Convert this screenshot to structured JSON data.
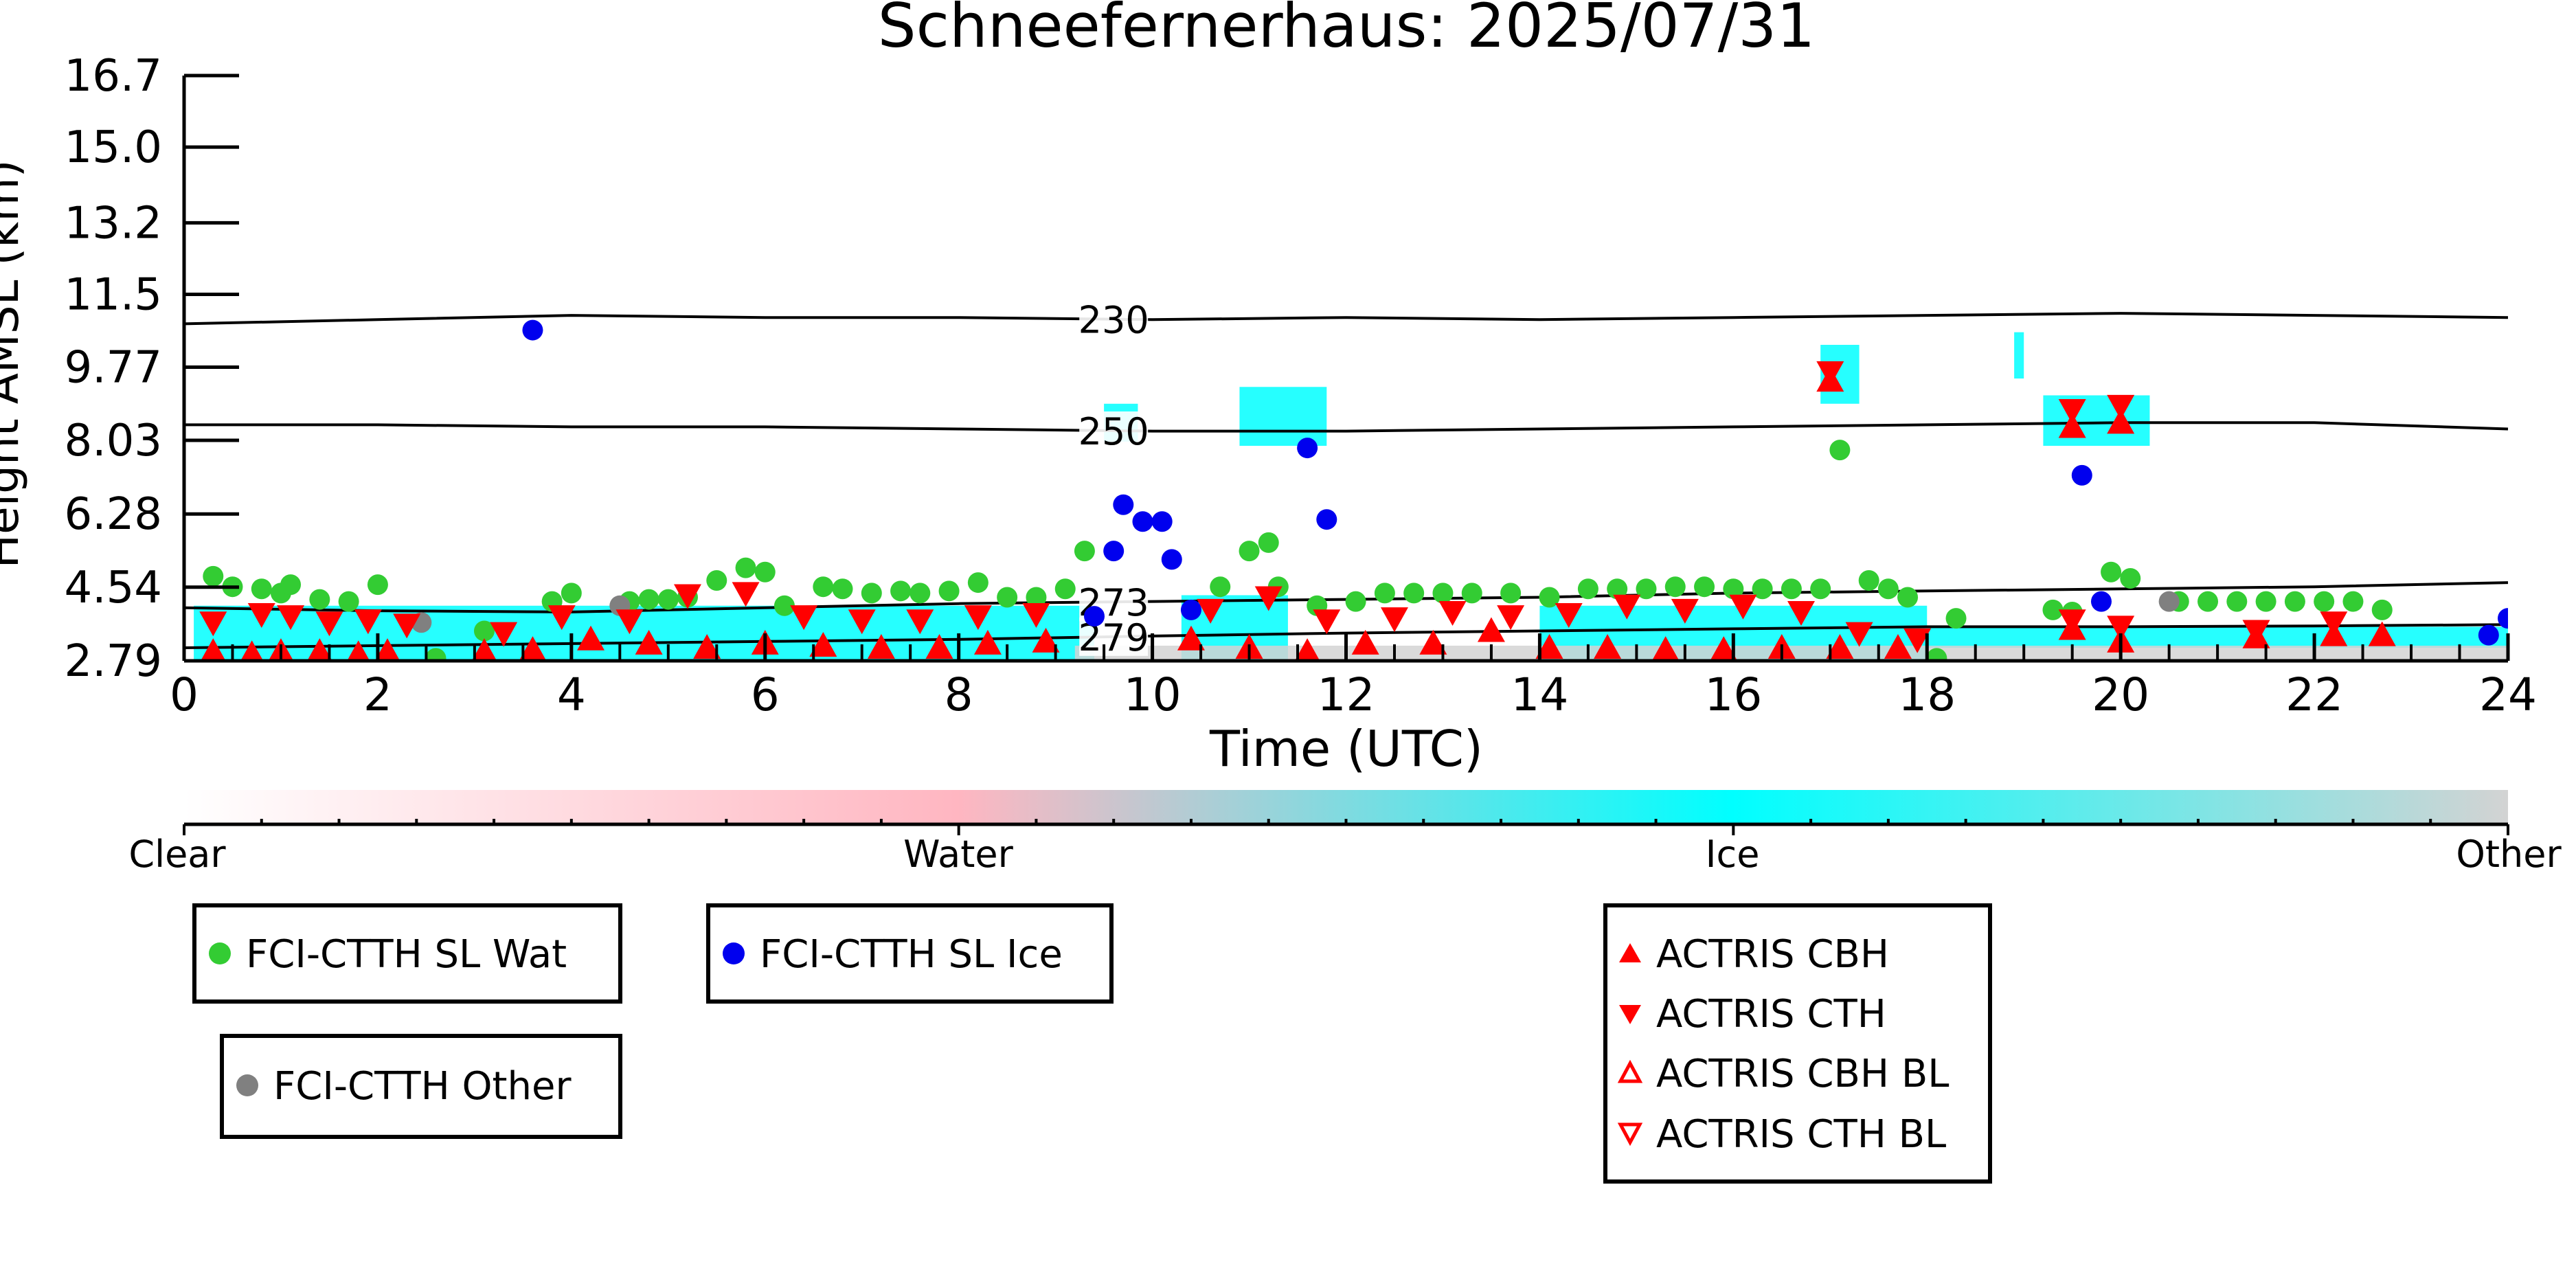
{
  "chart_data": {
    "type": "scatter",
    "title": "Schneefernerhaus: 2025/07/31",
    "xlabel": "Time (UTC)",
    "ylabel": "Height AMSL (km)",
    "xlim": [
      0,
      24
    ],
    "ylim": [
      2.79,
      16.7
    ],
    "x_ticks": [
      0,
      2,
      4,
      6,
      8,
      10,
      12,
      14,
      16,
      18,
      20,
      22,
      24
    ],
    "y_ticks": [
      2.79,
      4.54,
      6.28,
      8.03,
      9.77,
      11.5,
      13.2,
      15.0,
      16.7
    ],
    "y_tick_labels": [
      "2.79",
      "4.54",
      "6.28",
      "8.03",
      "9.77",
      "11.5",
      "13.2",
      "15.0",
      "16.7"
    ],
    "grid": false,
    "contours": [
      {
        "label": "230",
        "label_x": 9.6,
        "x": [
          0,
          2,
          4,
          6,
          8,
          10,
          12,
          14,
          16,
          18,
          20,
          22,
          24
        ],
        "y": [
          10.8,
          10.9,
          11.0,
          10.95,
          10.95,
          10.9,
          10.95,
          10.9,
          10.95,
          11.0,
          11.05,
          11.0,
          10.95
        ]
      },
      {
        "label": "250",
        "label_x": 9.6,
        "x": [
          0,
          2,
          4,
          6,
          8,
          10,
          12,
          14,
          16,
          18,
          20,
          22,
          24
        ],
        "y": [
          8.4,
          8.4,
          8.35,
          8.35,
          8.3,
          8.25,
          8.25,
          8.3,
          8.35,
          8.4,
          8.45,
          8.45,
          8.3
        ]
      },
      {
        "label": "273",
        "label_x": 9.6,
        "x": [
          0,
          2,
          4,
          6,
          8,
          10,
          12,
          14,
          16,
          18,
          20,
          22,
          24
        ],
        "y": [
          4.05,
          3.98,
          3.95,
          4.05,
          4.15,
          4.2,
          4.25,
          4.3,
          4.4,
          4.45,
          4.5,
          4.55,
          4.65
        ]
      },
      {
        "label": "279",
        "label_x": 9.6,
        "x": [
          0,
          2,
          4,
          6,
          8,
          10,
          12,
          14,
          16,
          18,
          20,
          22,
          24
        ],
        "y": [
          3.1,
          3.15,
          3.2,
          3.25,
          3.3,
          3.38,
          3.45,
          3.5,
          3.55,
          3.6,
          3.6,
          3.62,
          3.65
        ]
      }
    ],
    "classification_colorbar": {
      "labels": [
        "Clear",
        "Water",
        "Ice",
        "Other"
      ],
      "colors": [
        "#ffffff",
        "#ffb6c1",
        "#00ffff",
        "#d3d3d3"
      ]
    },
    "legend": [
      {
        "label": "FCI-CTTH SL Wat",
        "marker": "circle",
        "color": "#33cc33"
      },
      {
        "label": "FCI-CTTH SL Ice",
        "marker": "circle",
        "color": "#0000ee"
      },
      {
        "label": "FCI-CTTH Other",
        "marker": "circle",
        "color": "#808080"
      },
      {
        "label": "ACTRIS CBH",
        "marker": "triangle-up",
        "color": "#ff0000"
      },
      {
        "label": "ACTRIS CTH",
        "marker": "triangle-down",
        "color": "#ff0000"
      },
      {
        "label": "ACTRIS CBH BL",
        "marker": "triangle-up-open",
        "color": "#ff0000"
      },
      {
        "label": "ACTRIS CTH BL",
        "marker": "triangle-down-open",
        "color": "#ff0000"
      }
    ],
    "series": [
      {
        "name": "FCI-CTTH SL Wat",
        "color": "#33cc33",
        "x": [
          0.3,
          0.5,
          0.8,
          1.0,
          1.1,
          1.4,
          1.7,
          2.0,
          2.6,
          3.1,
          3.8,
          4.0,
          4.6,
          4.8,
          5.0,
          5.2,
          5.5,
          5.8,
          6.0,
          6.2,
          6.6,
          6.8,
          7.1,
          7.4,
          7.6,
          7.9,
          8.2,
          8.5,
          8.8,
          9.1,
          9.3,
          10.7,
          11.0,
          11.2,
          11.3,
          11.7,
          12.1,
          12.4,
          12.7,
          13.0,
          13.3,
          13.7,
          14.1,
          14.5,
          14.8,
          15.1,
          15.4,
          15.7,
          16.0,
          16.3,
          16.6,
          16.9,
          17.1,
          17.4,
          17.6,
          17.8,
          18.1,
          18.3,
          19.3,
          19.5,
          19.9,
          20.1,
          20.6,
          20.9,
          21.2,
          21.5,
          21.8,
          22.1,
          22.4,
          22.7
        ],
        "y": [
          4.8,
          4.55,
          4.5,
          4.4,
          4.6,
          4.25,
          4.2,
          4.6,
          2.85,
          3.5,
          4.2,
          4.4,
          4.2,
          4.25,
          4.25,
          4.3,
          4.7,
          5.0,
          4.9,
          4.1,
          4.55,
          4.5,
          4.4,
          4.45,
          4.4,
          4.45,
          4.65,
          4.3,
          4.3,
          4.5,
          5.4,
          4.55,
          5.4,
          5.6,
          4.55,
          4.1,
          4.2,
          4.4,
          4.4,
          4.4,
          4.4,
          4.4,
          4.3,
          4.5,
          4.5,
          4.5,
          4.55,
          4.55,
          4.5,
          4.5,
          4.5,
          4.5,
          7.8,
          4.7,
          4.5,
          4.3,
          2.85,
          3.8,
          4.0,
          3.95,
          4.9,
          4.75,
          4.2,
          4.2,
          4.2,
          4.2,
          4.2,
          4.2,
          4.2,
          4.0
        ]
      },
      {
        "name": "FCI-CTTH SL Ice",
        "color": "#0000ee",
        "x": [
          3.6,
          9.4,
          9.6,
          9.7,
          9.9,
          10.1,
          10.2,
          10.4,
          11.6,
          11.8,
          19.6,
          19.8,
          23.8,
          24.0
        ],
        "y": [
          10.65,
          3.85,
          5.4,
          6.5,
          6.1,
          6.1,
          5.2,
          4.0,
          7.85,
          6.15,
          7.2,
          4.2,
          3.4,
          3.8
        ]
      },
      {
        "name": "FCI-CTTH Other",
        "color": "#808080",
        "x": [
          2.45,
          4.5,
          20.5
        ],
        "y": [
          3.7,
          4.1,
          4.2
        ]
      },
      {
        "name": "ACTRIS CBH",
        "color": "#ff0000",
        "marker": "triangle-up",
        "x": [
          0.3,
          0.7,
          1.0,
          1.4,
          1.8,
          2.1,
          3.1,
          3.6,
          4.2,
          4.8,
          5.4,
          6.0,
          6.6,
          7.2,
          7.8,
          8.3,
          8.9,
          10.4,
          11.0,
          11.6,
          12.2,
          12.9,
          13.5,
          14.1,
          14.7,
          15.3,
          15.9,
          16.5,
          17.1,
          17.7,
          19.5,
          20.0,
          21.4,
          22.2,
          22.7,
          17.0,
          19.5,
          20.0
        ],
        "y": [
          3.0,
          2.95,
          3.0,
          3.0,
          2.95,
          3.0,
          3.0,
          3.05,
          3.3,
          3.2,
          3.1,
          3.2,
          3.15,
          3.1,
          3.1,
          3.2,
          3.25,
          3.3,
          3.1,
          3.0,
          3.2,
          3.2,
          3.5,
          3.1,
          3.1,
          3.05,
          3.05,
          3.1,
          3.1,
          3.1,
          3.55,
          3.25,
          3.35,
          3.4,
          3.4,
          9.45,
          8.35,
          8.45
        ]
      },
      {
        "name": "ACTRIS CTH",
        "color": "#ff0000",
        "marker": "triangle-down",
        "x": [
          0.3,
          0.8,
          1.1,
          1.5,
          1.9,
          2.3,
          3.3,
          3.9,
          4.6,
          5.2,
          5.8,
          6.4,
          7.0,
          7.6,
          8.2,
          8.8,
          10.6,
          11.2,
          11.8,
          12.5,
          13.1,
          13.7,
          14.3,
          14.9,
          15.5,
          16.1,
          16.7,
          17.3,
          17.9,
          19.5,
          20.0,
          21.4,
          22.2,
          17.0,
          19.5,
          20.0
        ],
        "y": [
          3.7,
          3.9,
          3.85,
          3.7,
          3.75,
          3.65,
          3.45,
          3.85,
          3.75,
          4.35,
          4.4,
          3.85,
          3.75,
          3.75,
          3.85,
          3.9,
          4.0,
          4.3,
          3.75,
          3.8,
          3.95,
          3.85,
          3.9,
          4.1,
          4.0,
          4.1,
          3.95,
          3.45,
          3.3,
          3.75,
          3.6,
          3.5,
          3.7,
          9.65,
          8.75,
          8.85
        ]
      },
      {
        "name": "ACTRIS CBH BL",
        "color": "#ff0000",
        "marker": "triangle-up-open",
        "x": [],
        "y": []
      },
      {
        "name": "ACTRIS CTH BL",
        "color": "#ff0000",
        "marker": "triangle-down-open",
        "x": [],
        "y": []
      }
    ],
    "classification_regions": [
      {
        "class": "Ice",
        "x": [
          0.1,
          9.4
        ],
        "y": [
          2.79,
          4.1
        ]
      },
      {
        "class": "Ice",
        "x": [
          10.3,
          11.4
        ],
        "y": [
          2.79,
          4.35
        ]
      },
      {
        "class": "Ice",
        "x": [
          14.0,
          18.0
        ],
        "y": [
          2.79,
          4.1
        ]
      },
      {
        "class": "Ice",
        "x": [
          18.0,
          24.0
        ],
        "y": [
          3.1,
          3.6
        ]
      },
      {
        "class": "Other",
        "x": [
          9.2,
          24.0
        ],
        "y": [
          2.79,
          3.15
        ]
      },
      {
        "class": "Ice",
        "x": [
          9.5,
          9.85
        ],
        "y": [
          8.0,
          8.9
        ]
      },
      {
        "class": "Ice",
        "x": [
          10.9,
          11.8
        ],
        "y": [
          7.9,
          9.3
        ]
      },
      {
        "class": "Ice",
        "x": [
          16.9,
          17.3
        ],
        "y": [
          8.9,
          10.3
        ]
      },
      {
        "class": "Ice",
        "x": [
          18.9,
          19.0
        ],
        "y": [
          9.5,
          10.6
        ]
      },
      {
        "class": "Ice",
        "x": [
          19.2,
          20.3
        ],
        "y": [
          7.9,
          9.1
        ]
      }
    ]
  }
}
